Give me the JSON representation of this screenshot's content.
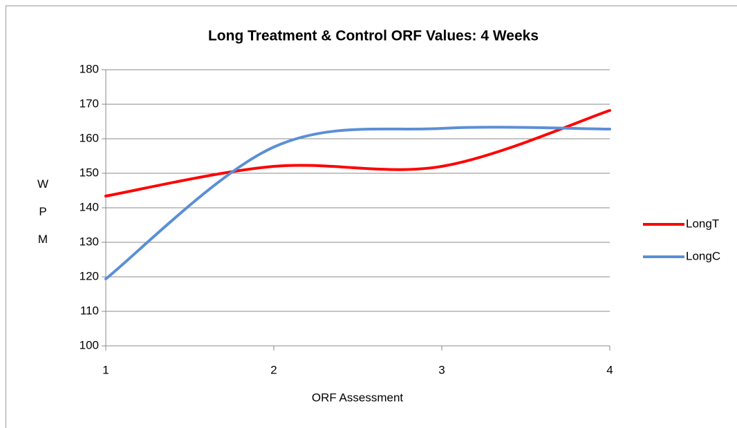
{
  "chart_data": {
    "type": "line",
    "title": "Long Treatment & Control ORF Values: 4 Weeks",
    "x_label": "ORF Assessment",
    "y_label": "WPM",
    "x": [
      1,
      2,
      3,
      4
    ],
    "series": [
      {
        "name": "LongT",
        "color": "#ff0000",
        "values": [
          143.4,
          152,
          152,
          168.2
        ]
      },
      {
        "name": "LongC",
        "color": "#5b8fd6",
        "values": [
          119.4,
          157.6,
          163,
          162.8
        ]
      }
    ],
    "xlim": [
      1,
      4
    ],
    "xticks": [
      1,
      2,
      3,
      4
    ],
    "ylim": [
      100,
      180
    ],
    "yticks": [
      100,
      110,
      120,
      130,
      140,
      150,
      160,
      170,
      180
    ],
    "grid": true,
    "smooth": true,
    "legend": "right"
  }
}
